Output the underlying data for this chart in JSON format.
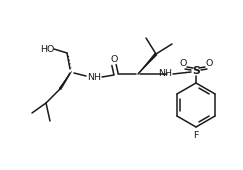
{
  "background": "#ffffff",
  "linecolor": "#1a1a1a",
  "linewidth": 1.1,
  "fontsize": 6.8,
  "figsize": [
    2.43,
    1.7
  ],
  "dpi": 100,
  "xlim": [
    0,
    243
  ],
  "ylim": [
    0,
    170
  ]
}
